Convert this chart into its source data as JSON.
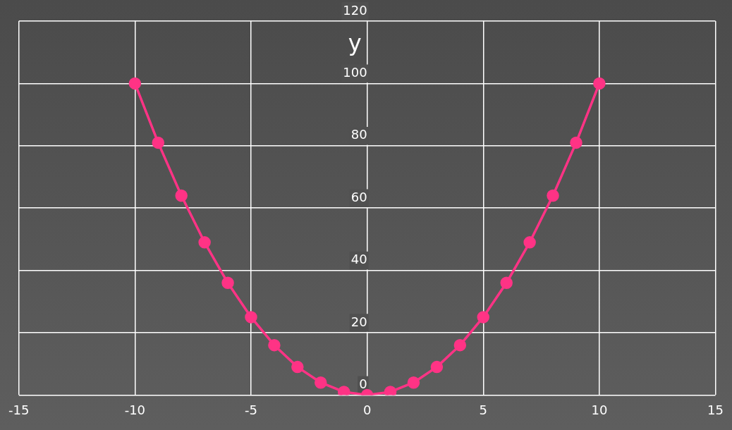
{
  "chart_data": {
    "type": "line",
    "ylabel": "y",
    "x": [
      -10,
      -9,
      -8,
      -7,
      -6,
      -5,
      -4,
      -3,
      -2,
      -1,
      0,
      1,
      2,
      3,
      4,
      5,
      6,
      7,
      8,
      9,
      10
    ],
    "series": [
      {
        "color": "#ff3385",
        "values": [
          100,
          81,
          64,
          49,
          36,
          25,
          16,
          9,
          4,
          1,
          0,
          1,
          4,
          9,
          16,
          25,
          36,
          49,
          64,
          81,
          100
        ]
      }
    ],
    "xlim": [
      -15,
      15
    ],
    "xticks": [
      -15,
      -10,
      -5,
      0,
      5,
      10,
      15
    ],
    "ylim": [
      0,
      120
    ],
    "yticks": [
      0,
      20,
      40,
      60,
      80,
      100,
      120
    ],
    "grid": true,
    "legend": false,
    "marker": "circle",
    "line_style": "solid"
  }
}
